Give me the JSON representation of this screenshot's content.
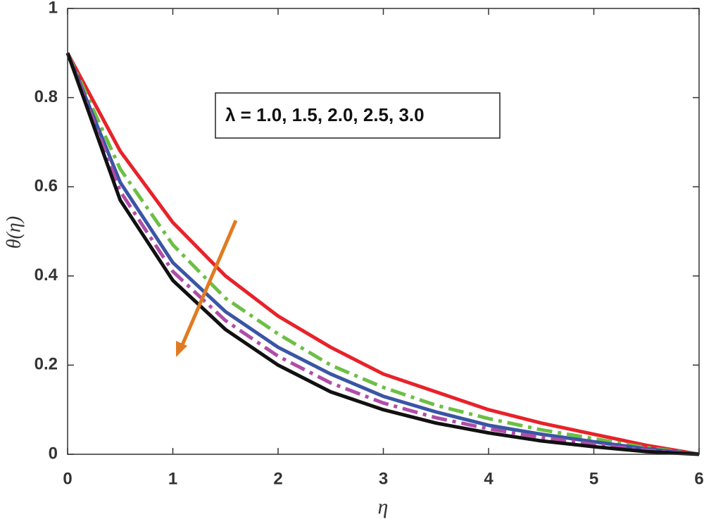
{
  "chart_data": {
    "type": "line",
    "xlabel": "η",
    "ylabel": "θ(η)",
    "annotation": "λ = 1.0, 1.5, 2.0, 2.5, 3.0",
    "x": [
      0,
      0.5,
      1,
      1.5,
      2,
      2.5,
      3,
      3.5,
      4,
      4.5,
      5,
      5.5,
      6
    ],
    "series": [
      {
        "color": "#e8222a",
        "style": "solid",
        "values": [
          0.9,
          0.68,
          0.52,
          0.4,
          0.31,
          0.24,
          0.18,
          0.14,
          0.1,
          0.07,
          0.045,
          0.02,
          0
        ]
      },
      {
        "color": "#6cbf44",
        "style": "dashdot",
        "values": [
          0.9,
          0.64,
          0.47,
          0.35,
          0.27,
          0.2,
          0.15,
          0.11,
          0.08,
          0.055,
          0.035,
          0.015,
          0
        ]
      },
      {
        "color": "#3a55a4",
        "style": "solid",
        "values": [
          0.9,
          0.61,
          0.43,
          0.32,
          0.24,
          0.18,
          0.13,
          0.095,
          0.065,
          0.045,
          0.028,
          0.012,
          0
        ]
      },
      {
        "color": "#b04ca8",
        "style": "dashdot",
        "values": [
          0.9,
          0.59,
          0.41,
          0.3,
          0.22,
          0.16,
          0.115,
          0.082,
          0.057,
          0.038,
          0.022,
          0.009,
          0
        ]
      },
      {
        "color": "#111111",
        "style": "solid",
        "values": [
          0.9,
          0.57,
          0.39,
          0.28,
          0.2,
          0.14,
          0.1,
          0.07,
          0.048,
          0.03,
          0.017,
          0.006,
          0
        ]
      }
    ],
    "xlim": [
      0,
      6
    ],
    "xticks": [
      0,
      1,
      2,
      3,
      4,
      5,
      6
    ],
    "ylim": [
      0,
      1
    ],
    "yticks": [
      0,
      0.2,
      0.4,
      0.6,
      0.8,
      1
    ],
    "grid": false
  }
}
